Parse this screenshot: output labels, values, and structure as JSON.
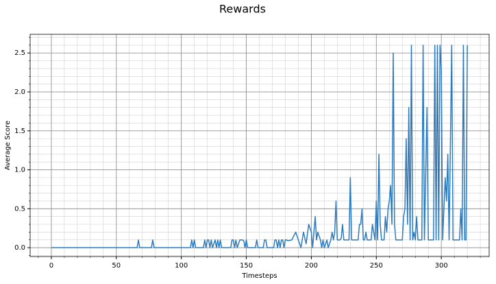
{
  "chart_data": {
    "type": "line",
    "title": "Rewards",
    "xlabel": "Timesteps",
    "ylabel": "Average Score",
    "xlim": [
      -16.3,
      336.8
    ],
    "ylim": [
      -0.114,
      2.74
    ],
    "xticks": [
      0,
      50,
      100,
      150,
      200,
      250,
      300
    ],
    "yticks": [
      {
        "value": 0,
        "label": "0.0"
      },
      0.5,
      {
        "value": 1,
        "label": "1.0"
      },
      1.5,
      {
        "value": 2,
        "label": "2.0"
      },
      2.5
    ],
    "grid": true,
    "minor_grid": true,
    "series": [
      {
        "color": "#2a7abf",
        "x": [
          0,
          66,
          67,
          68,
          77,
          78,
          79,
          107,
          108,
          109,
          110,
          111,
          117,
          118,
          119,
          120,
          121,
          122,
          123,
          124,
          126,
          127,
          128,
          129,
          130,
          131,
          138,
          139,
          140,
          141,
          142,
          143,
          145,
          147,
          148,
          149,
          150,
          151,
          157,
          158,
          159,
          163,
          164,
          165,
          166,
          171,
          172,
          173,
          174,
          175,
          176,
          177,
          178,
          179,
          180,
          181,
          182,
          185,
          188,
          190,
          192,
          194,
          196,
          198,
          200,
          201,
          203,
          204,
          205,
          207,
          208,
          209,
          210,
          212,
          213,
          215,
          216,
          217,
          218,
          219,
          220,
          222,
          223,
          224,
          225,
          229,
          230,
          231,
          236,
          237,
          238,
          239,
          240,
          241,
          242,
          243,
          246,
          247,
          248,
          249,
          250,
          251,
          252,
          253,
          254,
          256,
          257,
          258,
          259,
          260,
          261,
          262,
          263,
          264,
          265,
          270,
          271,
          272,
          273,
          274,
          275,
          276,
          277,
          278,
          279,
          280,
          281,
          282,
          285,
          286,
          287,
          289,
          290,
          294,
          295,
          296,
          297,
          298,
          299,
          300,
          301,
          303,
          304,
          305,
          306,
          308,
          309,
          314,
          315,
          316,
          317,
          318,
          319,
          320
        ],
        "values": [
          0,
          0,
          0.1,
          0,
          0,
          0.1,
          0,
          0,
          0.1,
          0,
          0.1,
          0,
          0,
          0.1,
          0,
          0.1,
          0.1,
          0,
          0.1,
          0,
          0.1,
          0,
          0.1,
          0,
          0.1,
          0,
          0,
          0.1,
          0.1,
          0,
          0.1,
          0,
          0.1,
          0.1,
          0.09,
          0,
          0.1,
          0,
          0,
          0.1,
          0,
          0,
          0.1,
          0.1,
          0,
          0,
          0.1,
          0.1,
          0,
          0.1,
          0,
          0.1,
          0.1,
          0,
          0.1,
          0.1,
          0.09,
          0.1,
          0.2,
          0.1,
          0,
          0.2,
          0.05,
          0.3,
          0.2,
          0,
          0.4,
          0.1,
          0.2,
          0.1,
          0,
          0.1,
          0,
          0.1,
          0,
          0.1,
          0.2,
          0.1,
          0.2,
          0.6,
          0.1,
          0.1,
          0.12,
          0.3,
          0.1,
          0.1,
          0.9,
          0.1,
          0.1,
          0.3,
          0.3,
          0.5,
          0.1,
          0.1,
          0.2,
          0.1,
          0.1,
          0.3,
          0.2,
          0.1,
          0.6,
          0.1,
          1.2,
          0.3,
          0.1,
          0.1,
          0.4,
          0.2,
          0.5,
          0.6,
          0.8,
          0.3,
          2.5,
          0.3,
          0.1,
          0.1,
          0.4,
          0.5,
          1.4,
          0.3,
          1.8,
          0.1,
          2.6,
          0.1,
          0.2,
          0.1,
          0.4,
          0.1,
          0.1,
          2.6,
          0.1,
          1.8,
          0.1,
          0.1,
          2.6,
          0.1,
          2.6,
          0.1,
          2.6,
          2.3,
          0.1,
          0.9,
          0.6,
          1.2,
          0.1,
          2.6,
          0.1,
          0.1,
          0.5,
          0.1,
          2.6,
          0.1,
          0.1,
          2.6
        ]
      }
    ]
  }
}
